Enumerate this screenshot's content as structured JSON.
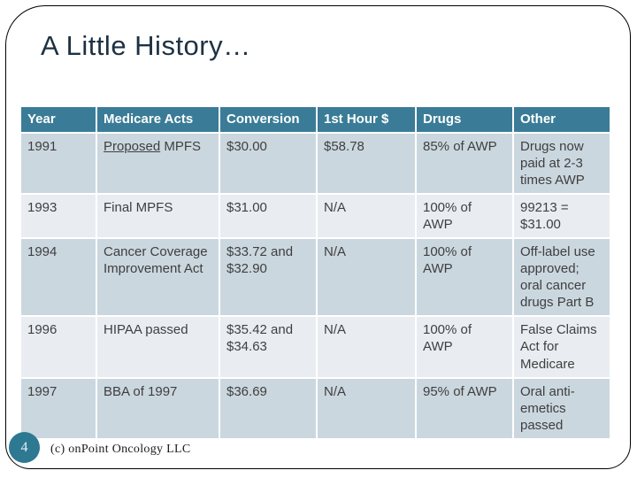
{
  "slide": {
    "title": "A Little History…",
    "page_number": "4",
    "footer": "(c) onPoint Oncology LLC"
  },
  "colors": {
    "header_teal": "#3a7c97",
    "badge_teal": "#2e7992",
    "row_dark": "#cbd7df",
    "row_light": "#e9edf2",
    "title_navy": "#1d3143",
    "body_text": "#3f3f3f",
    "frame_line": "#000000"
  },
  "table": {
    "headers": [
      "Year",
      "Medicare Acts",
      "Conversion",
      "1st Hour $",
      "Drugs",
      "Other"
    ],
    "rows": [
      {
        "year": "1991",
        "acts_underlined": "Proposed",
        "acts_rest": " MPFS",
        "conversion": "$30.00",
        "hour": "$58.78",
        "drugs": "85% of AWP",
        "other": "Drugs now\npaid at 2-3\ntimes AWP"
      },
      {
        "year": "1993",
        "acts": "Final MPFS",
        "conversion": "$31.00",
        "hour": "N/A",
        "drugs": "100% of\nAWP",
        "other": "99213 =\n$31.00"
      },
      {
        "year": "1994",
        "acts": "Cancer Coverage\nImprovement Act",
        "conversion": "$33.72 and\n$32.90",
        "hour": "N/A",
        "drugs": "100% of\nAWP",
        "other": "Off-label use\napproved;\noral cancer\ndrugs Part B"
      },
      {
        "year": "1996",
        "acts": "HIPAA passed",
        "conversion": "$35.42 and\n$34.63",
        "hour": "N/A",
        "drugs": "100% of\nAWP",
        "other": "False Claims\nAct for\nMedicare"
      },
      {
        "year": "1997",
        "acts": "BBA of 1997",
        "conversion": "$36.69",
        "hour": "N/A",
        "drugs": "95% of AWP",
        "other": "Oral anti-\nemetics\npassed"
      }
    ]
  }
}
